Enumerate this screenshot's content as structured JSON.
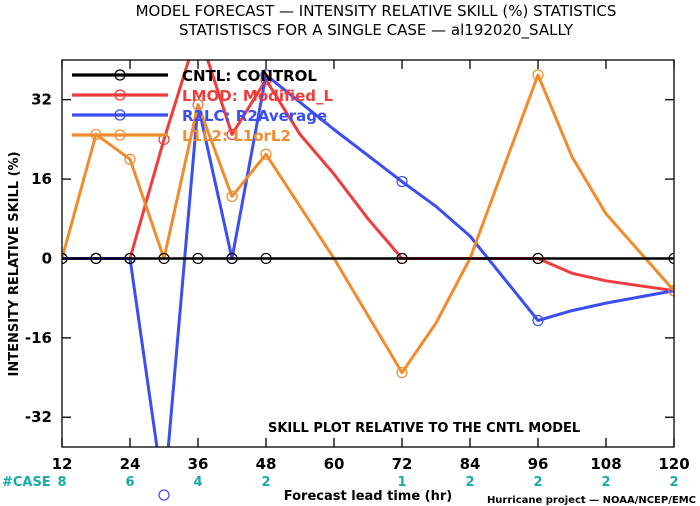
{
  "header": {
    "title_line1": "MODEL FORECAST — INTENSITY RELATIVE SKILL (%) STATISTICS",
    "title_line2": "STATISTISCS FOR A SINGLE CASE — al192020_SALLY"
  },
  "footer": {
    "case_label": "#CASE",
    "credit": "Hurricane project — NOAA/NCEP/EMC"
  },
  "chart_data": {
    "type": "line",
    "title": "MODEL FORECAST — INTENSITY RELATIVE SKILL (%) STATISTICS",
    "subtitle": "STATISTISCS FOR A SINGLE CASE — al192020_SALLY",
    "xlabel": "Forecast lead time (hr)",
    "ylabel": "INTENSITY RELATIVE SKILL (%)",
    "xlim": [
      12,
      120
    ],
    "ylim": [
      -38,
      40
    ],
    "xticks": [
      12,
      24,
      36,
      48,
      60,
      72,
      84,
      96,
      108,
      120
    ],
    "yticks": [
      -32,
      -16,
      0,
      16,
      32
    ],
    "annotation": "SKILL PLOT RELATIVE TO THE CNTL MODEL",
    "case_counts": [
      {
        "x": 12,
        "n": "8"
      },
      {
        "x": 24,
        "n": "6"
      },
      {
        "x": 36,
        "n": "4"
      },
      {
        "x": 48,
        "n": "2"
      },
      {
        "x": 72,
        "n": "1"
      },
      {
        "x": 84,
        "n": "2"
      },
      {
        "x": 96,
        "n": "2"
      },
      {
        "x": 108,
        "n": "2"
      },
      {
        "x": 120,
        "n": "2"
      }
    ],
    "legend_position": "top-left",
    "grid": false,
    "series": [
      {
        "name": "CNTL: CONTROL",
        "color": "#000000",
        "x": [
          12,
          18,
          24,
          30,
          36,
          42,
          48,
          72,
          96,
          120
        ],
        "y": [
          0,
          0,
          0,
          0,
          0,
          0,
          0,
          0,
          0,
          0
        ],
        "markers": [
          12,
          18,
          24,
          30,
          36,
          42,
          48,
          72,
          96,
          120
        ]
      },
      {
        "name": "LMOD: Modified_L",
        "color": "#f03c3c",
        "x": [
          12,
          18,
          24,
          30,
          36,
          42,
          48,
          54,
          60,
          66,
          72,
          78,
          84,
          90,
          96,
          102,
          108,
          114,
          120
        ],
        "y": [
          0,
          0,
          0,
          24,
          46,
          25,
          36,
          25,
          17,
          8,
          0,
          0,
          0,
          0,
          0,
          -3,
          -4.5,
          -5.5,
          -6.5
        ],
        "markers": [
          12,
          18,
          24,
          30,
          36,
          42,
          48,
          72,
          96,
          120
        ]
      },
      {
        "name": "R2LC: R2Average",
        "color": "#3b4ef0",
        "x": [
          12,
          18,
          24,
          30,
          36,
          42,
          48,
          60,
          72,
          78,
          84,
          96,
          102,
          108,
          120
        ],
        "y": [
          0,
          0,
          0,
          -48,
          31,
          0,
          37,
          26,
          15.5,
          10.5,
          4.5,
          -12.5,
          -10.5,
          -9,
          -6.5
        ],
        "markers": [
          12,
          18,
          24,
          30,
          36,
          42,
          48,
          72,
          96,
          120
        ]
      },
      {
        "name": "L1L2: L1orL2",
        "color": "#f08c2d",
        "x": [
          12,
          18,
          24,
          30,
          36,
          42,
          48,
          60,
          72,
          78,
          84,
          96,
          102,
          108,
          120
        ],
        "y": [
          0,
          25,
          20,
          0,
          31,
          12.5,
          21,
          0,
          -23,
          -13,
          0,
          37,
          20.5,
          9,
          -6.5
        ],
        "markers": [
          12,
          18,
          24,
          30,
          36,
          42,
          48,
          72,
          96,
          120
        ]
      }
    ]
  }
}
